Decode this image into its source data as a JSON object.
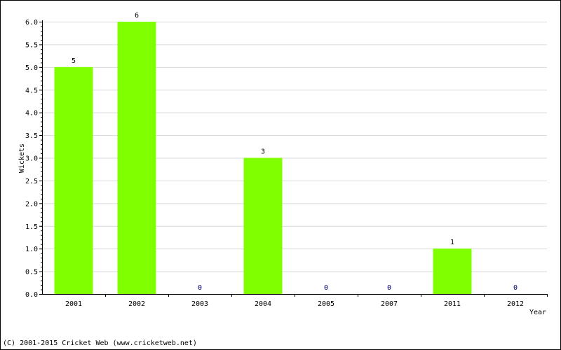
{
  "chart_data": {
    "type": "bar",
    "categories": [
      "2001",
      "2002",
      "2003",
      "2004",
      "2005",
      "2007",
      "2011",
      "2012"
    ],
    "values": [
      5,
      6,
      0,
      3,
      0,
      0,
      1,
      0
    ],
    "data_labels": [
      "5",
      "6",
      "0",
      "3",
      "0",
      "0",
      "1",
      "0"
    ],
    "xlabel": "Year",
    "ylabel": "Wickets",
    "ylim": [
      0,
      6
    ],
    "yticks": [
      "0.0",
      "0.5",
      "1.0",
      "1.5",
      "2.0",
      "2.5",
      "3.0",
      "3.5",
      "4.0",
      "4.5",
      "5.0",
      "5.5",
      "6.0"
    ],
    "grid": true,
    "bar_color": "#80ff00",
    "grid_color": "#d9d9d9",
    "zero_label_color": "#000080"
  },
  "footer": {
    "credit": "(C) 2001-2015 Cricket Web (www.cricketweb.net)"
  }
}
